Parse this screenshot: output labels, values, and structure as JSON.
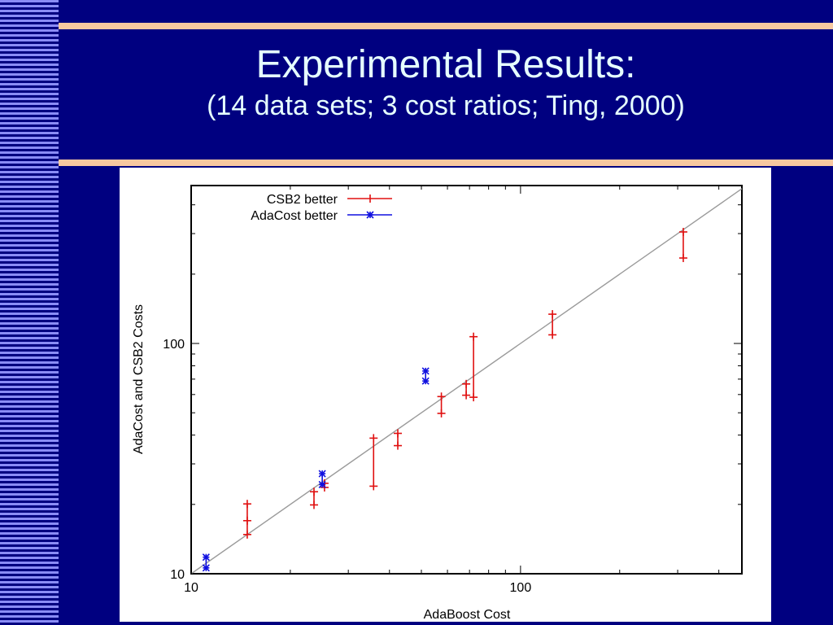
{
  "slide": {
    "title": "Experimental Results:",
    "subtitle": "(14 data sets; 3 cost ratios; Ting, 2000)"
  },
  "colors": {
    "background": "#000080",
    "title": "#e6ffff",
    "rule": "#f7c8a0",
    "stripe": "#8a8cf5",
    "csb2": "#e01010",
    "adacost": "#1010e0",
    "diagonal": "#9a9a9a"
  },
  "chart_data": {
    "type": "scatter",
    "xlabel": "AdaBoost Cost",
    "ylabel": "AdaCost and CSB2 Costs",
    "x_scale": "log",
    "y_scale": "log",
    "xlim": [
      10,
      470
    ],
    "ylim": [
      10,
      485
    ],
    "x_ticks": [
      10,
      100
    ],
    "y_ticks": [
      10,
      100
    ],
    "x_tick_labels": [
      "10",
      "100"
    ],
    "y_tick_labels": [
      "10",
      "100"
    ],
    "reference_line": "y = x",
    "legend_position": "top-left",
    "series": [
      {
        "name": "CSB2 better",
        "marker": "plus",
        "color": "#e01010",
        "points": [
          {
            "x": 14.8,
            "lo": 14.8,
            "hi": 20.1,
            "marks": [
              14.8,
              17.0,
              20.1
            ]
          },
          {
            "x": 23.6,
            "lo": 19.9,
            "hi": 22.7,
            "marks": [
              19.9,
              22.7
            ]
          },
          {
            "x": 25.4,
            "lo": 23.7,
            "hi": 24.7,
            "marks": [
              23.7,
              24.7
            ]
          },
          {
            "x": 35.8,
            "lo": 24.0,
            "hi": 38.8,
            "marks": [
              24.0,
              38.8
            ]
          },
          {
            "x": 42.4,
            "lo": 36.0,
            "hi": 40.7,
            "marks": [
              36.0,
              40.7
            ]
          },
          {
            "x": 57.5,
            "lo": 49.7,
            "hi": 58.8,
            "marks": [
              49.7,
              58.8
            ]
          },
          {
            "x": 68.4,
            "lo": 59.6,
            "hi": 66.7,
            "marks": [
              59.6,
              66.7
            ]
          },
          {
            "x": 72.0,
            "lo": 58.4,
            "hi": 107.0,
            "marks": [
              58.4,
              107.0
            ]
          },
          {
            "x": 125.0,
            "lo": 109.0,
            "hi": 134.0,
            "marks": [
              109.0,
              134.0
            ]
          },
          {
            "x": 312.0,
            "lo": 235.0,
            "hi": 305.0,
            "marks": [
              235.0,
              305.0
            ]
          }
        ]
      },
      {
        "name": "AdaCost better",
        "marker": "star",
        "color": "#1010e0",
        "points": [
          {
            "x": 11.1,
            "lo": 10.6,
            "hi": 11.8,
            "marks": [
              10.6,
              11.8
            ]
          },
          {
            "x": 25.0,
            "lo": 24.4,
            "hi": 27.2,
            "marks": [
              24.4,
              27.2
            ]
          },
          {
            "x": 51.5,
            "lo": 68.7,
            "hi": 75.9,
            "marks": [
              68.7,
              75.9
            ]
          }
        ]
      }
    ]
  }
}
